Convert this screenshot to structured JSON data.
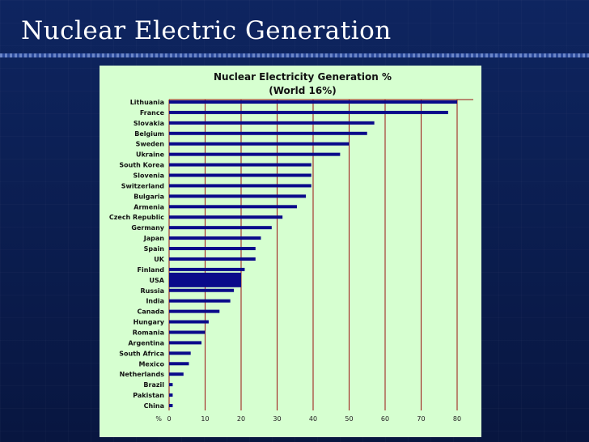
{
  "slide": {
    "title": "Nuclear Electric Generation"
  },
  "colors": {
    "background": "#0b1a4a",
    "panel": "#d6ffd0",
    "bar": "#0a0a8a",
    "gridline": "#9b1010"
  },
  "chart_data": {
    "type": "bar",
    "orientation": "horizontal",
    "title": "Nuclear Electricity Generation %",
    "subtitle": "(World 16%)",
    "xlabel": "%",
    "xlim": [
      0,
      80
    ],
    "xticks": [
      "0",
      "10",
      "20",
      "30",
      "40",
      "50",
      "60",
      "70",
      "80"
    ],
    "grid": true,
    "categories": [
      "Lithuania",
      "France",
      "Slovakia",
      "Belgium",
      "Sweden",
      "Ukraine",
      "South Korea",
      "Slovenia",
      "Switzerland",
      "Bulgaria",
      "Armenia",
      "Czech Republic",
      "Germany",
      "Japan",
      "Spain",
      "UK",
      "Finland",
      "USA",
      "Russia",
      "India",
      "Canada",
      "Hungary",
      "Romania",
      "Argentina",
      "South Africa",
      "Mexico",
      "Netherlands",
      "Brazil",
      "Pakistan",
      "China"
    ],
    "values": [
      80,
      77.5,
      57,
      55,
      50,
      47.5,
      39.5,
      39.5,
      39.5,
      38,
      35.5,
      31.5,
      28.5,
      25.5,
      24,
      24,
      21,
      20,
      18,
      17,
      14,
      11,
      10,
      9,
      6,
      5.5,
      4,
      1,
      1,
      1
    ]
  }
}
